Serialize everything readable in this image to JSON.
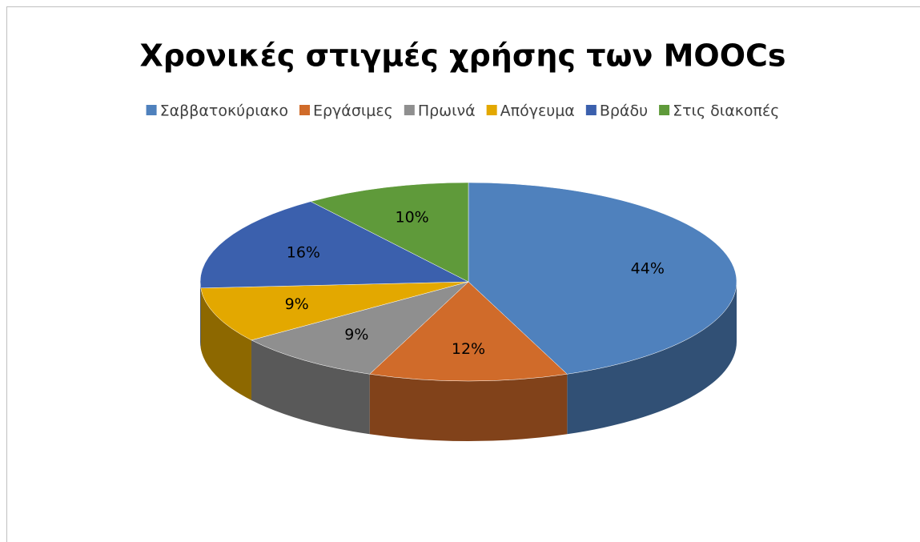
{
  "chart_data": {
    "type": "pie3d",
    "title": "Χρονικές στιγμές χρήσης των MOOCs",
    "categories": [
      "Σαββατοκύριακο",
      "Εργάσιμες",
      "Πρωινά",
      "Απόγευμα",
      "Βράδυ",
      "Στις διακοπές"
    ],
    "values": [
      44,
      12,
      9,
      9,
      16,
      10
    ],
    "value_labels": [
      "44%",
      "12%",
      "9%",
      "9%",
      "16%",
      "10%"
    ],
    "colors": [
      "#4f81bd",
      "#d06b2a",
      "#8f8f8f",
      "#e3a800",
      "#3b60ad",
      "#5f9a3a"
    ],
    "legend": "top"
  }
}
